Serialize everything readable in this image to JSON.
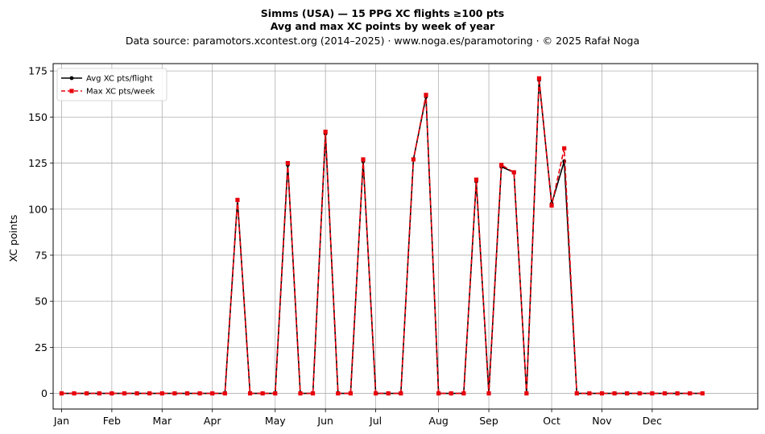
{
  "chart_data": {
    "type": "line",
    "title": "Simms (USA)  —  15 PPG XC flights ≥100 pts",
    "subtitle": "Avg and max XC points by week of year",
    "source": "Data source: paramotors.xcontest.org (2014–2025)  ·  www.noga.es/paramotoring  ·  © 2025 Rafał Noga",
    "xlabel": "",
    "ylabel": "XC points",
    "x": [
      1,
      2,
      3,
      4,
      5,
      6,
      7,
      8,
      9,
      10,
      11,
      12,
      13,
      14,
      15,
      16,
      17,
      18,
      19,
      20,
      21,
      22,
      23,
      24,
      25,
      26,
      27,
      28,
      29,
      30,
      31,
      32,
      33,
      34,
      35,
      36,
      37,
      38,
      39,
      40,
      41,
      42,
      43,
      44,
      45,
      46,
      47,
      48,
      49,
      50,
      51,
      52
    ],
    "xlim": [
      0.33,
      56.4
    ],
    "ylim": [
      -8.5,
      179
    ],
    "yticks": [
      0,
      25,
      50,
      75,
      100,
      125,
      150,
      175
    ],
    "xticks": [
      {
        "label": "Jan",
        "x": 1
      },
      {
        "label": "Feb",
        "x": 5
      },
      {
        "label": "Mar",
        "x": 9
      },
      {
        "label": "Apr",
        "x": 13
      },
      {
        "label": "May",
        "x": 18
      },
      {
        "label": "Jun",
        "x": 22
      },
      {
        "label": "Jul",
        "x": 26
      },
      {
        "label": "Aug",
        "x": 31
      },
      {
        "label": "Sep",
        "x": 35
      },
      {
        "label": "Oct",
        "x": 40
      },
      {
        "label": "Nov",
        "x": 44
      },
      {
        "label": "Dec",
        "x": 48
      }
    ],
    "grid": true,
    "legend_position": "top-left",
    "series": [
      {
        "name": "Avg XC pts/flight",
        "color": "#000000",
        "style": "solid",
        "marker": "circle",
        "values": [
          0,
          0,
          0,
          0,
          0,
          0,
          0,
          0,
          0,
          0,
          0,
          0,
          0,
          0,
          105,
          0,
          0,
          0,
          124,
          0,
          0,
          141,
          0,
          0,
          126,
          0,
          0,
          0,
          127,
          161,
          0,
          0,
          0,
          115,
          0,
          123,
          120,
          0,
          170,
          103,
          126,
          0,
          0,
          0,
          0,
          0,
          0,
          0,
          0,
          0,
          0,
          0
        ]
      },
      {
        "name": "Max XC pts/week",
        "color": "#e8000b",
        "style": "dashed",
        "marker": "square",
        "values": [
          0,
          0,
          0,
          0,
          0,
          0,
          0,
          0,
          0,
          0,
          0,
          0,
          0,
          0,
          105,
          0,
          0,
          0,
          125,
          0,
          0,
          142,
          0,
          0,
          127,
          0,
          0,
          0,
          127,
          162,
          0,
          0,
          0,
          116,
          0,
          124,
          120,
          0,
          171,
          102,
          133,
          0,
          0,
          0,
          0,
          0,
          0,
          0,
          0,
          0,
          0,
          0
        ]
      }
    ]
  }
}
